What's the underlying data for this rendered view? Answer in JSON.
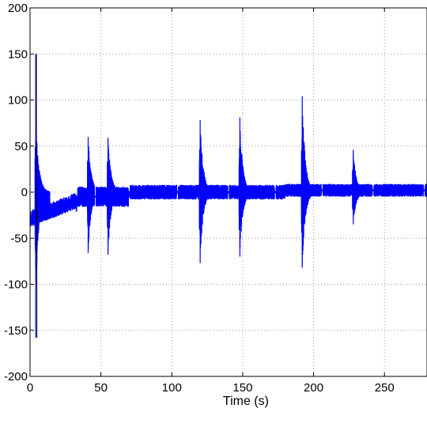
{
  "chart_data": {
    "type": "line",
    "title": "",
    "xlabel": "Time (s)",
    "ylabel": "",
    "xlim": [
      0,
      280
    ],
    "ylim": [
      -200,
      200
    ],
    "x_ticks": [
      0,
      50,
      100,
      150,
      200,
      250
    ],
    "y_ticks": [
      200,
      150,
      100,
      50,
      0,
      -50,
      -100,
      -150,
      -200
    ],
    "grid": true,
    "series": [
      {
        "color": "#0000ff",
        "note_segments": [
          {
            "start": 0,
            "end": 33,
            "base": -20,
            "noise": 9
          },
          {
            "start": 33,
            "end": 70,
            "base": -5,
            "noise": 11
          },
          {
            "start": 70,
            "end": 180,
            "base": 0,
            "noise": 8
          },
          {
            "start": 180,
            "end": 280,
            "base": 2,
            "noise": 7
          }
        ],
        "spikes": [
          {
            "t": 4,
            "max": 150,
            "min": -158,
            "env_max": 82,
            "env_min": -113
          },
          {
            "t": 41,
            "max": 60,
            "min": -66,
            "env_max": 60,
            "env_min": -66
          },
          {
            "t": 55,
            "max": 59,
            "min": -68,
            "env_max": 59,
            "env_min": -68
          },
          {
            "t": 120,
            "max": 78,
            "min": -77,
            "env_max": 78,
            "env_min": -77
          },
          {
            "t": 148,
            "max": 81,
            "min": -70,
            "env_max": 81,
            "env_min": -70
          },
          {
            "t": 192,
            "max": 104,
            "min": -82,
            "env_max": 104,
            "env_min": -82
          },
          {
            "t": 228,
            "max": 46,
            "min": -35,
            "env_max": 46,
            "env_min": -35
          }
        ],
        "gaps": [
          33,
          46,
          70,
          104,
          140,
          173,
          206,
          242,
          278
        ]
      }
    ]
  }
}
